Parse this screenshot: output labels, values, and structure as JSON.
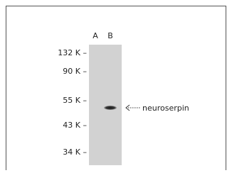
{
  "lanes": [
    "A",
    "B"
  ],
  "markers": [
    "132 K –",
    "90 K –",
    "55 K –",
    "43 K –",
    "34 K –"
  ],
  "band_label": "neuroserpin"
}
